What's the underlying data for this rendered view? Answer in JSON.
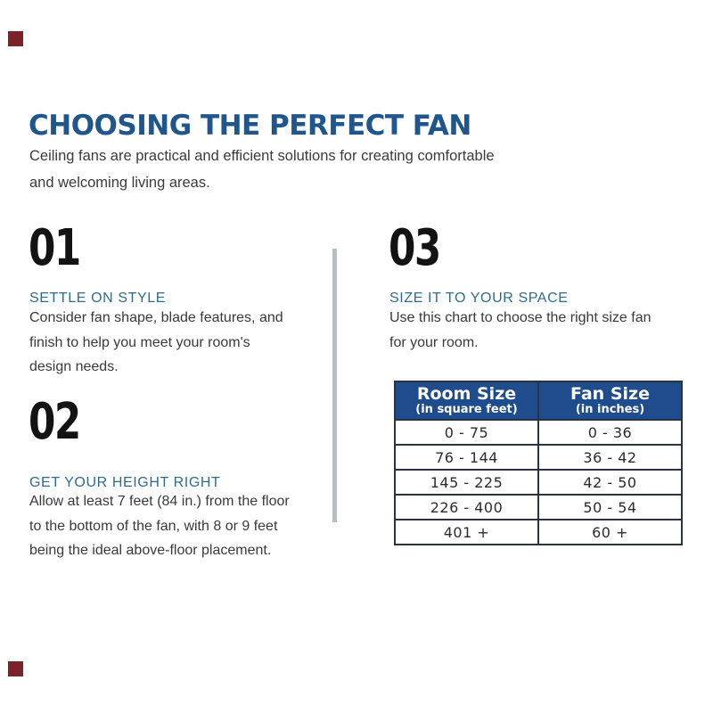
{
  "page": {
    "background_color": "#ffffff",
    "accent_square_color": "#7a2329",
    "divider_color": "#b7bec3"
  },
  "header": {
    "title": "CHOOSING THE PERFECT FAN",
    "title_color": "#20568e",
    "subtitle_lines": [
      "Ceiling fans are practical and efficient solutions for creating comfortable",
      "and welcoming living areas."
    ]
  },
  "steps": [
    {
      "number": "01",
      "heading": "SETTLE ON STYLE",
      "heading_color": "#2f6c8c",
      "body_lines": [
        "Consider fan shape, blade features, and",
        "finish to help you meet your room's",
        "design needs."
      ]
    },
    {
      "number": "02",
      "heading": "GET YOUR HEIGHT RIGHT",
      "heading_color": "#2f6c8c",
      "body_lines": [
        "Allow at least 7 feet (84 in.) from the floor",
        "to the bottom of the fan, with 8 or 9 feet",
        "being the ideal above-floor placement."
      ]
    },
    {
      "number": "03",
      "heading": "SIZE IT TO YOUR SPACE",
      "heading_color": "#2f6c8c",
      "body_lines": [
        "Use this chart to choose the right size fan",
        "for your room."
      ]
    }
  ],
  "size_chart": {
    "type": "table",
    "header_bg_color": "#1e4c8c",
    "border_color": "#2b3240",
    "columns": [
      {
        "label": "Room Size",
        "sublabel": "(in square feet)"
      },
      {
        "label": "Fan Size",
        "sublabel": "(in inches)"
      }
    ],
    "rows": [
      [
        "0 - 75",
        "0 - 36"
      ],
      [
        "76 - 144",
        "36 - 42"
      ],
      [
        "145 - 225",
        "42 - 50"
      ],
      [
        "226 - 400",
        "50 - 54"
      ],
      [
        "401 +",
        "60 +"
      ]
    ]
  }
}
